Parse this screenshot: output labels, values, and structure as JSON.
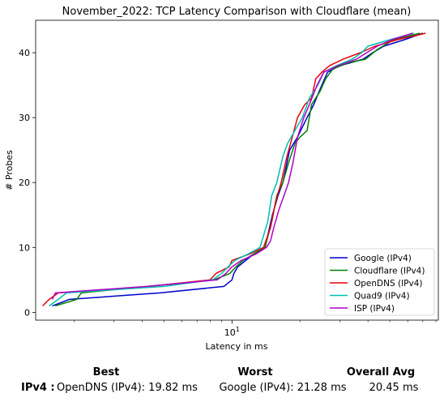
{
  "chart_data": {
    "type": "line",
    "title": "November_2022: TCP Latency Comparison with Cloudflare (mean)",
    "xlabel": "Latency in ms",
    "ylabel": "# Probes",
    "xscale": "log",
    "xlim": [
      1.35,
      82
    ],
    "ylim": [
      -1.2,
      45
    ],
    "x_major_tick": {
      "value": 10,
      "label": "10",
      "label_base": "10",
      "label_exp": "1"
    },
    "y_ticks": [
      0,
      10,
      20,
      30,
      40
    ],
    "grid": false,
    "legend_position": "lower-right",
    "series": [
      {
        "name": "Google (IPv4)",
        "color": "#0000cc",
        "points": [
          [
            1.6,
            1
          ],
          [
            1.9,
            2
          ],
          [
            4.8,
            3
          ],
          [
            9.2,
            4
          ],
          [
            10.0,
            5
          ],
          [
            10.2,
            6
          ],
          [
            10.6,
            7
          ],
          [
            11.5,
            8
          ],
          [
            12.5,
            9
          ],
          [
            14.0,
            10
          ],
          [
            15.1,
            15
          ],
          [
            16.0,
            18
          ],
          [
            16.8,
            20
          ],
          [
            18.0,
            25
          ],
          [
            19.5,
            27
          ],
          [
            21.5,
            30
          ],
          [
            23.0,
            32
          ],
          [
            25.0,
            35
          ],
          [
            26.5,
            37
          ],
          [
            30.0,
            38
          ],
          [
            38.0,
            39
          ],
          [
            42.0,
            40
          ],
          [
            47.0,
            41
          ],
          [
            58.0,
            42
          ],
          [
            70.0,
            43
          ]
        ]
      },
      {
        "name": "Cloudflare (IPv4)",
        "color": "#008000",
        "points": [
          [
            1.65,
            1
          ],
          [
            2.05,
            2
          ],
          [
            2.15,
            3
          ],
          [
            8.3,
            5
          ],
          [
            9.8,
            6
          ],
          [
            10.4,
            7
          ],
          [
            11.2,
            8
          ],
          [
            12.5,
            9
          ],
          [
            14.0,
            10
          ],
          [
            15.0,
            14
          ],
          [
            15.8,
            18
          ],
          [
            16.8,
            20
          ],
          [
            17.8,
            23
          ],
          [
            19.0,
            26
          ],
          [
            20.0,
            27
          ],
          [
            21.5,
            28
          ],
          [
            22.5,
            32
          ],
          [
            24.5,
            34
          ],
          [
            26.0,
            36
          ],
          [
            28.0,
            37.5
          ],
          [
            33.0,
            38.5
          ],
          [
            39.0,
            39
          ],
          [
            44.0,
            40.5
          ],
          [
            52.0,
            42
          ],
          [
            68.0,
            43
          ]
        ]
      },
      {
        "name": "OpenDNS (IPv4)",
        "color": "#e8000b",
        "points": [
          [
            1.45,
            1
          ],
          [
            1.55,
            2
          ],
          [
            1.7,
            3
          ],
          [
            4.3,
            4
          ],
          [
            8.0,
            5
          ],
          [
            8.5,
            6
          ],
          [
            9.7,
            7
          ],
          [
            10.0,
            8
          ],
          [
            12.0,
            9
          ],
          [
            13.8,
            10
          ],
          [
            14.8,
            13
          ],
          [
            15.6,
            17
          ],
          [
            16.5,
            20
          ],
          [
            17.5,
            24
          ],
          [
            18.5,
            27
          ],
          [
            19.5,
            30
          ],
          [
            21.0,
            32
          ],
          [
            22.5,
            33
          ],
          [
            23.5,
            36
          ],
          [
            25.0,
            37
          ],
          [
            27.0,
            38
          ],
          [
            31.0,
            39
          ],
          [
            37.0,
            40
          ],
          [
            43.0,
            41
          ],
          [
            54.0,
            42
          ],
          [
            72.0,
            43
          ]
        ]
      },
      {
        "name": "Quad9 (IPv4)",
        "color": "#00c0b0",
        "points": [
          [
            1.55,
            1
          ],
          [
            1.7,
            2
          ],
          [
            1.85,
            3
          ],
          [
            5.0,
            4
          ],
          [
            8.2,
            5
          ],
          [
            9.0,
            6
          ],
          [
            9.6,
            7
          ],
          [
            10.3,
            8
          ],
          [
            11.8,
            9
          ],
          [
            13.3,
            10
          ],
          [
            14.4,
            14
          ],
          [
            15.0,
            18
          ],
          [
            15.8,
            20
          ],
          [
            16.8,
            24
          ],
          [
            17.6,
            26
          ],
          [
            19.0,
            28
          ],
          [
            20.5,
            30
          ],
          [
            22.0,
            33
          ],
          [
            24.0,
            35
          ],
          [
            25.5,
            37
          ],
          [
            29.0,
            38
          ],
          [
            34.0,
            39
          ],
          [
            37.5,
            40
          ],
          [
            40.0,
            41
          ],
          [
            50.0,
            42
          ],
          [
            64.0,
            43
          ]
        ]
      },
      {
        "name": "ISP (IPv4)",
        "color": "#b000c8",
        "points": [
          [
            1.6,
            2
          ],
          [
            1.65,
            3
          ],
          [
            4.2,
            4
          ],
          [
            8.6,
            5
          ],
          [
            9.4,
            6
          ],
          [
            10.0,
            7
          ],
          [
            11.0,
            8
          ],
          [
            12.8,
            9
          ],
          [
            14.2,
            10
          ],
          [
            14.8,
            11
          ],
          [
            15.3,
            13
          ],
          [
            16.2,
            16
          ],
          [
            17.0,
            18
          ],
          [
            17.8,
            20
          ],
          [
            18.6,
            23
          ],
          [
            19.5,
            27
          ],
          [
            20.8,
            30
          ],
          [
            22.0,
            32
          ],
          [
            23.8,
            35
          ],
          [
            25.5,
            37
          ],
          [
            29.5,
            38
          ],
          [
            35.5,
            39
          ],
          [
            39.5,
            40
          ],
          [
            44.0,
            41
          ],
          [
            51.0,
            42
          ],
          [
            63.0,
            43
          ]
        ]
      }
    ]
  },
  "summary": {
    "headers": {
      "best": "Best",
      "worst": "Worst",
      "avg": "Overall Avg"
    },
    "row_label": "IPv4 :",
    "best": "OpenDNS (IPv4): 19.82 ms",
    "worst": "Google (IPv4): 21.28 ms",
    "avg": "20.45 ms"
  }
}
